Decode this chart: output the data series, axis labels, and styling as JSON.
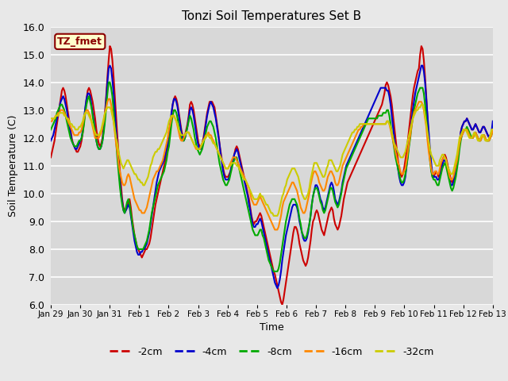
{
  "title": "Tonzi Soil Temperatures Set B",
  "xlabel": "Time",
  "ylabel": "Soil Temperature (C)",
  "ylim": [
    6.0,
    16.0
  ],
  "yticks": [
    6.0,
    7.0,
    8.0,
    9.0,
    10.0,
    11.0,
    12.0,
    13.0,
    14.0,
    15.0,
    16.0
  ],
  "xtick_labels": [
    "Jan 29",
    "Jan 30",
    "Jan 31",
    "Feb 1",
    "Feb 2",
    "Feb 3",
    "Feb 4",
    "Feb 5",
    "Feb 6",
    "Feb 7",
    "Feb 8",
    "Feb 9",
    "Feb 10",
    "Feb 11",
    "Feb 12",
    "Feb 13"
  ],
  "legend_label": "TZ_fmet",
  "series_labels": [
    "-2cm",
    "-4cm",
    "-8cm",
    "-16cm",
    "-32cm"
  ],
  "series_colors": [
    "#cc0000",
    "#0000cc",
    "#00aa00",
    "#ff8800",
    "#cccc00"
  ],
  "line_width": 1.5,
  "background_color": "#e8e8e8",
  "plot_bg_color": "#d8d8d8",
  "grid_color": "#ffffff",
  "figsize": [
    6.4,
    4.8
  ],
  "dpi": 100,
  "cm2_data": [
    11.3,
    11.5,
    11.7,
    11.9,
    12.2,
    12.5,
    12.8,
    13.1,
    13.4,
    13.7,
    13.8,
    13.7,
    13.5,
    13.2,
    12.9,
    12.6,
    12.3,
    12.0,
    11.8,
    11.7,
    11.6,
    11.5,
    11.5,
    11.6,
    11.7,
    11.9,
    12.2,
    12.6,
    13.0,
    13.4,
    13.7,
    13.8,
    13.7,
    13.5,
    13.3,
    13.0,
    12.7,
    12.3,
    12.0,
    11.8,
    11.7,
    11.8,
    12.0,
    12.4,
    12.9,
    13.5,
    14.2,
    14.8,
    15.3,
    15.2,
    14.8,
    14.2,
    13.5,
    12.8,
    12.1,
    11.5,
    10.9,
    10.3,
    9.8,
    9.5,
    9.4,
    9.4,
    9.5,
    9.7,
    9.8,
    9.5,
    9.1,
    8.8,
    8.5,
    8.3,
    8.1,
    8.0,
    7.9,
    7.8,
    7.7,
    7.8,
    7.9,
    8.0,
    8.0,
    8.1,
    8.2,
    8.4,
    8.7,
    9.0,
    9.3,
    9.6,
    9.8,
    10.0,
    10.2,
    10.4,
    10.6,
    10.8,
    11.0,
    11.2,
    11.4,
    11.7,
    12.0,
    12.4,
    12.8,
    13.2,
    13.4,
    13.5,
    13.4,
    13.2,
    12.9,
    12.6,
    12.3,
    12.1,
    12.0,
    12.1,
    12.3,
    12.5,
    12.8,
    13.2,
    13.3,
    13.2,
    13.0,
    12.7,
    12.4,
    12.1,
    11.8,
    11.7,
    11.7,
    11.8,
    12.0,
    12.3,
    12.6,
    12.9,
    13.1,
    13.3,
    13.3,
    13.3,
    13.2,
    13.1,
    12.8,
    12.5,
    12.2,
    11.8,
    11.5,
    11.2,
    10.9,
    10.7,
    10.6,
    10.6,
    10.6,
    10.7,
    10.8,
    11.0,
    11.2,
    11.4,
    11.6,
    11.7,
    11.6,
    11.4,
    11.2,
    11.0,
    10.8,
    10.6,
    10.4,
    10.2,
    10.0,
    9.8,
    9.5,
    9.2,
    9.0,
    8.9,
    9.0,
    9.0,
    9.1,
    9.2,
    9.3,
    9.2,
    9.0,
    8.8,
    8.6,
    8.4,
    8.2,
    8.0,
    7.8,
    7.6,
    7.4,
    7.2,
    7.1,
    6.9,
    6.7,
    6.5,
    6.3,
    6.1,
    6.0,
    6.2,
    6.5,
    6.8,
    7.1,
    7.4,
    7.7,
    8.0,
    8.3,
    8.6,
    8.8,
    8.8,
    8.7,
    8.5,
    8.2,
    8.0,
    7.8,
    7.6,
    7.5,
    7.4,
    7.5,
    7.7,
    8.0,
    8.3,
    8.7,
    9.0,
    9.1,
    9.3,
    9.4,
    9.3,
    9.1,
    8.9,
    8.7,
    8.6,
    8.5,
    8.7,
    8.9,
    9.1,
    9.3,
    9.4,
    9.5,
    9.4,
    9.1,
    8.9,
    8.8,
    8.7,
    8.8,
    9.0,
    9.2,
    9.5,
    9.8,
    10.0,
    10.2,
    10.4,
    10.5,
    10.6,
    10.7,
    10.8,
    10.9,
    11.0,
    11.1,
    11.2,
    11.3,
    11.4,
    11.5,
    11.6,
    11.7,
    11.8,
    11.9,
    12.0,
    12.1,
    12.2,
    12.3,
    12.4,
    12.5,
    12.6,
    12.7,
    12.8,
    12.9,
    13.0,
    13.1,
    13.2,
    13.4,
    13.6,
    13.9,
    14.0,
    13.9,
    13.7,
    13.5,
    13.2,
    12.8,
    12.4,
    12.0,
    11.6,
    11.2,
    10.9,
    10.7,
    10.6,
    10.7,
    10.9,
    11.2,
    11.5,
    11.9,
    12.3,
    12.7,
    13.1,
    13.5,
    13.8,
    14.0,
    14.2,
    14.4,
    14.5,
    15.0,
    15.3,
    15.2,
    14.8,
    14.2,
    13.5,
    12.7,
    12.0,
    11.4,
    10.9,
    10.6,
    10.6,
    10.7,
    10.8,
    10.7,
    10.6,
    10.8,
    11.0,
    11.2,
    11.3,
    11.4,
    11.3,
    11.1,
    10.9,
    10.7,
    10.5,
    10.4,
    10.5,
    10.6,
    10.8,
    11.1,
    11.4,
    11.8,
    12.2,
    12.4,
    12.5,
    12.6,
    12.6,
    12.7,
    12.6,
    12.5,
    12.4,
    12.3,
    12.3,
    12.4,
    12.5,
    12.4,
    12.3,
    12.2,
    12.2,
    12.3,
    12.4,
    12.4,
    12.3,
    12.2,
    12.1,
    12.0,
    12.1,
    12.2,
    12.3
  ],
  "cm4_data": [
    11.9,
    12.0,
    12.1,
    12.3,
    12.5,
    12.7,
    12.9,
    13.1,
    13.3,
    13.4,
    13.5,
    13.4,
    13.2,
    13.0,
    12.7,
    12.4,
    12.2,
    11.9,
    11.8,
    11.7,
    11.6,
    11.6,
    11.7,
    11.8,
    11.9,
    12.0,
    12.3,
    12.7,
    13.1,
    13.4,
    13.6,
    13.6,
    13.5,
    13.2,
    12.9,
    12.6,
    12.2,
    11.9,
    11.7,
    11.6,
    11.6,
    11.7,
    11.9,
    12.3,
    12.8,
    13.4,
    14.0,
    14.5,
    14.6,
    14.5,
    14.1,
    13.6,
    13.0,
    12.3,
    11.7,
    11.1,
    10.5,
    10.0,
    9.7,
    9.4,
    9.3,
    9.4,
    9.5,
    9.6,
    9.5,
    9.2,
    8.9,
    8.6,
    8.3,
    8.1,
    7.9,
    7.8,
    7.8,
    7.9,
    7.9,
    8.0,
    8.0,
    8.1,
    8.2,
    8.4,
    8.6,
    8.9,
    9.2,
    9.5,
    9.8,
    10.1,
    10.4,
    10.6,
    10.8,
    10.9,
    11.0,
    11.1,
    11.2,
    11.4,
    11.6,
    11.8,
    12.2,
    12.5,
    12.9,
    13.2,
    13.4,
    13.4,
    13.3,
    13.1,
    12.8,
    12.5,
    12.2,
    12.0,
    11.9,
    12.0,
    12.2,
    12.4,
    12.7,
    13.0,
    13.1,
    13.0,
    12.8,
    12.5,
    12.2,
    11.9,
    11.7,
    11.6,
    11.6,
    11.7,
    11.9,
    12.2,
    12.5,
    12.8,
    13.0,
    13.2,
    13.3,
    13.2,
    13.1,
    12.9,
    12.7,
    12.4,
    12.1,
    11.8,
    11.4,
    11.1,
    10.8,
    10.6,
    10.5,
    10.5,
    10.5,
    10.6,
    10.8,
    11.0,
    11.2,
    11.4,
    11.5,
    11.6,
    11.5,
    11.3,
    11.1,
    10.9,
    10.7,
    10.5,
    10.3,
    10.1,
    9.9,
    9.6,
    9.4,
    9.1,
    8.9,
    8.8,
    8.8,
    8.9,
    8.9,
    9.0,
    9.1,
    9.0,
    8.8,
    8.6,
    8.4,
    8.2,
    8.0,
    7.8,
    7.6,
    7.4,
    7.2,
    7.0,
    6.8,
    6.7,
    6.6,
    6.7,
    6.9,
    7.2,
    7.6,
    7.9,
    8.2,
    8.5,
    8.7,
    8.9,
    9.1,
    9.3,
    9.5,
    9.6,
    9.6,
    9.6,
    9.5,
    9.3,
    9.0,
    8.8,
    8.6,
    8.4,
    8.3,
    8.3,
    8.4,
    8.6,
    8.9,
    9.2,
    9.6,
    9.9,
    10.1,
    10.3,
    10.3,
    10.2,
    10.0,
    9.8,
    9.7,
    9.5,
    9.4,
    9.5,
    9.7,
    9.9,
    10.1,
    10.3,
    10.4,
    10.3,
    10.1,
    9.8,
    9.7,
    9.6,
    9.7,
    9.9,
    10.1,
    10.4,
    10.6,
    10.8,
    11.0,
    11.1,
    11.2,
    11.3,
    11.4,
    11.5,
    11.6,
    11.7,
    11.8,
    11.9,
    12.0,
    12.1,
    12.2,
    12.3,
    12.4,
    12.5,
    12.6,
    12.7,
    12.8,
    12.9,
    13.0,
    13.1,
    13.2,
    13.3,
    13.4,
    13.5,
    13.6,
    13.7,
    13.8,
    13.8,
    13.8,
    13.8,
    13.8,
    13.7,
    13.7,
    13.5,
    13.2,
    12.8,
    12.4,
    12.0,
    11.6,
    11.2,
    10.9,
    10.6,
    10.4,
    10.3,
    10.3,
    10.4,
    10.6,
    11.0,
    11.4,
    11.8,
    12.2,
    12.6,
    13.0,
    13.3,
    13.6,
    13.8,
    14.0,
    14.2,
    14.4,
    14.6,
    14.6,
    14.4,
    14.0,
    13.4,
    12.8,
    12.2,
    11.6,
    11.1,
    10.7,
    10.6,
    10.6,
    10.6,
    10.5,
    10.5,
    10.6,
    10.8,
    11.0,
    11.2,
    11.2,
    11.1,
    10.9,
    10.7,
    10.5,
    10.3,
    10.3,
    10.4,
    10.6,
    10.8,
    11.1,
    11.4,
    11.8,
    12.2,
    12.4,
    12.5,
    12.6,
    12.6,
    12.7,
    12.6,
    12.5,
    12.4,
    12.3,
    12.3,
    12.4,
    12.5,
    12.4,
    12.3,
    12.2,
    12.2,
    12.3,
    12.4,
    12.4,
    12.3,
    12.2,
    12.1,
    12.0,
    12.1,
    12.2,
    12.6
  ],
  "cm8_data": [
    12.3,
    12.4,
    12.5,
    12.6,
    12.7,
    12.9,
    13.0,
    13.1,
    13.2,
    13.2,
    13.1,
    13.0,
    12.8,
    12.6,
    12.4,
    12.2,
    12.0,
    11.9,
    11.8,
    11.7,
    11.7,
    11.7,
    11.8,
    11.9,
    11.9,
    12.0,
    12.2,
    12.5,
    12.9,
    13.2,
    13.4,
    13.5,
    13.3,
    13.1,
    12.8,
    12.5,
    12.2,
    11.9,
    11.7,
    11.6,
    11.6,
    11.7,
    11.9,
    12.2,
    12.6,
    13.1,
    13.6,
    14.0,
    14.0,
    13.8,
    13.5,
    13.0,
    12.4,
    11.9,
    11.3,
    10.8,
    10.3,
    9.9,
    9.6,
    9.4,
    9.3,
    9.5,
    9.7,
    9.8,
    9.6,
    9.3,
    9.0,
    8.7,
    8.5,
    8.3,
    8.1,
    8.0,
    8.0,
    8.0,
    8.0,
    8.0,
    8.1,
    8.2,
    8.3,
    8.5,
    8.7,
    9.0,
    9.3,
    9.5,
    9.7,
    9.9,
    10.1,
    10.3,
    10.4,
    10.5,
    10.6,
    10.7,
    10.8,
    11.0,
    11.2,
    11.5,
    11.7,
    12.1,
    12.5,
    12.8,
    13.0,
    13.0,
    12.9,
    12.7,
    12.4,
    12.2,
    12.0,
    11.9,
    11.9,
    12.0,
    12.2,
    12.4,
    12.6,
    12.8,
    12.7,
    12.5,
    12.3,
    12.0,
    11.8,
    11.6,
    11.5,
    11.4,
    11.5,
    11.6,
    11.8,
    12.0,
    12.2,
    12.4,
    12.5,
    12.6,
    12.6,
    12.5,
    12.4,
    12.2,
    12.0,
    11.7,
    11.4,
    11.1,
    10.9,
    10.7,
    10.5,
    10.4,
    10.3,
    10.3,
    10.4,
    10.5,
    10.7,
    10.9,
    11.1,
    11.2,
    11.3,
    11.3,
    11.1,
    10.9,
    10.7,
    10.5,
    10.3,
    10.1,
    9.9,
    9.7,
    9.5,
    9.3,
    9.1,
    8.9,
    8.7,
    8.6,
    8.5,
    8.5,
    8.5,
    8.6,
    8.7,
    8.7,
    8.5,
    8.4,
    8.2,
    8.0,
    7.8,
    7.6,
    7.5,
    7.4,
    7.3,
    7.2,
    7.2,
    7.2,
    7.2,
    7.3,
    7.5,
    7.8,
    8.1,
    8.4,
    8.7,
    9.0,
    9.2,
    9.4,
    9.6,
    9.7,
    9.8,
    9.8,
    9.8,
    9.7,
    9.6,
    9.4,
    9.1,
    8.9,
    8.6,
    8.5,
    8.4,
    8.4,
    8.5,
    8.7,
    8.9,
    9.2,
    9.6,
    9.9,
    10.1,
    10.2,
    10.2,
    10.1,
    9.9,
    9.7,
    9.6,
    9.4,
    9.3,
    9.4,
    9.6,
    9.8,
    10.0,
    10.2,
    10.2,
    10.1,
    9.9,
    9.7,
    9.6,
    9.5,
    9.6,
    9.8,
    10.0,
    10.3,
    10.5,
    10.7,
    10.9,
    11.0,
    11.1,
    11.2,
    11.3,
    11.4,
    11.5,
    11.6,
    11.7,
    11.8,
    11.9,
    12.0,
    12.1,
    12.2,
    12.3,
    12.4,
    12.5,
    12.6,
    12.7,
    12.7,
    12.7,
    12.7,
    12.7,
    12.7,
    12.7,
    12.7,
    12.8,
    12.8,
    12.8,
    12.8,
    12.9,
    12.9,
    12.9,
    13.0,
    13.0,
    12.8,
    12.5,
    12.2,
    11.9,
    11.6,
    11.3,
    11.1,
    10.9,
    10.7,
    10.5,
    10.4,
    10.4,
    10.5,
    10.7,
    11.0,
    11.3,
    11.7,
    12.0,
    12.4,
    12.7,
    13.0,
    13.2,
    13.4,
    13.6,
    13.7,
    13.8,
    13.8,
    13.8,
    13.6,
    13.2,
    12.7,
    12.2,
    11.7,
    11.2,
    10.8,
    10.6,
    10.5,
    10.5,
    10.4,
    10.3,
    10.3,
    10.5,
    10.7,
    10.9,
    11.0,
    11.1,
    11.0,
    10.8,
    10.6,
    10.4,
    10.2,
    10.1,
    10.2,
    10.4,
    10.6,
    10.9,
    11.2,
    11.6,
    11.9,
    12.1,
    12.2,
    12.3,
    12.3,
    12.4,
    12.3,
    12.2,
    12.1,
    12.0,
    12.0,
    12.1,
    12.2,
    12.1,
    12.0,
    11.9,
    11.9,
    12.0,
    12.1,
    12.1,
    12.0,
    11.9,
    11.9,
    11.9,
    12.0,
    12.1,
    12.3
  ],
  "cm16_data": [
    12.6,
    12.6,
    12.7,
    12.7,
    12.8,
    12.8,
    12.9,
    12.9,
    13.0,
    13.0,
    13.0,
    12.9,
    12.8,
    12.7,
    12.6,
    12.5,
    12.4,
    12.3,
    12.2,
    12.1,
    12.1,
    12.1,
    12.1,
    12.2,
    12.2,
    12.3,
    12.5,
    12.7,
    12.9,
    13.0,
    13.0,
    12.9,
    12.8,
    12.6,
    12.4,
    12.2,
    12.0,
    12.0,
    12.0,
    12.0,
    12.1,
    12.2,
    12.4,
    12.6,
    12.9,
    13.1,
    13.3,
    13.4,
    13.4,
    13.2,
    12.9,
    12.6,
    12.2,
    11.8,
    11.5,
    11.1,
    10.8,
    10.6,
    10.4,
    10.3,
    10.3,
    10.4,
    10.6,
    10.7,
    10.6,
    10.4,
    10.2,
    10.0,
    9.8,
    9.7,
    9.6,
    9.5,
    9.4,
    9.4,
    9.3,
    9.3,
    9.3,
    9.4,
    9.5,
    9.7,
    9.9,
    10.1,
    10.3,
    10.5,
    10.6,
    10.7,
    10.8,
    10.8,
    10.9,
    11.0,
    11.1,
    11.2,
    11.4,
    11.6,
    11.8,
    12.0,
    12.3,
    12.5,
    12.7,
    12.8,
    12.8,
    12.7,
    12.6,
    12.4,
    12.2,
    12.0,
    11.9,
    11.9,
    12.0,
    12.1,
    12.2,
    12.2,
    12.2,
    12.1,
    12.0,
    11.9,
    11.8,
    11.7,
    11.6,
    11.6,
    11.6,
    11.6,
    11.7,
    11.8,
    11.9,
    12.0,
    12.1,
    12.1,
    12.2,
    12.1,
    12.1,
    12.0,
    11.9,
    11.8,
    11.7,
    11.6,
    11.5,
    11.4,
    11.3,
    11.2,
    11.1,
    11.0,
    10.9,
    10.9,
    10.9,
    11.0,
    11.1,
    11.2,
    11.3,
    11.3,
    11.3,
    11.2,
    11.1,
    11.0,
    10.9,
    10.8,
    10.7,
    10.6,
    10.5,
    10.4,
    10.3,
    10.2,
    10.0,
    9.8,
    9.7,
    9.6,
    9.6,
    9.6,
    9.7,
    9.8,
    9.9,
    9.8,
    9.7,
    9.6,
    9.5,
    9.4,
    9.3,
    9.2,
    9.1,
    9.0,
    8.9,
    8.8,
    8.7,
    8.7,
    8.7,
    8.8,
    9.0,
    9.2,
    9.5,
    9.7,
    9.8,
    9.9,
    10.0,
    10.1,
    10.2,
    10.3,
    10.4,
    10.4,
    10.3,
    10.2,
    10.1,
    9.9,
    9.7,
    9.5,
    9.4,
    9.3,
    9.3,
    9.4,
    9.6,
    9.8,
    10.0,
    10.3,
    10.5,
    10.7,
    10.8,
    10.8,
    10.7,
    10.6,
    10.4,
    10.3,
    10.2,
    10.1,
    10.1,
    10.2,
    10.4,
    10.6,
    10.7,
    10.8,
    10.8,
    10.7,
    10.6,
    10.4,
    10.3,
    10.3,
    10.4,
    10.6,
    10.8,
    11.0,
    11.1,
    11.2,
    11.3,
    11.4,
    11.5,
    11.6,
    11.7,
    11.8,
    11.9,
    12.0,
    12.1,
    12.2,
    12.3,
    12.3,
    12.4,
    12.4,
    12.5,
    12.5,
    12.5,
    12.5,
    12.5,
    12.5,
    12.5,
    12.5,
    12.5,
    12.5,
    12.5,
    12.5,
    12.5,
    12.5,
    12.5,
    12.5,
    12.5,
    12.5,
    12.5,
    12.6,
    12.6,
    12.5,
    12.3,
    12.1,
    11.9,
    11.7,
    11.5,
    11.3,
    11.1,
    11.0,
    10.8,
    10.7,
    10.7,
    10.8,
    10.9,
    11.2,
    11.5,
    11.8,
    12.1,
    12.4,
    12.7,
    12.9,
    13.0,
    13.1,
    13.2,
    13.3,
    13.3,
    13.3,
    13.2,
    13.0,
    12.7,
    12.4,
    11.9,
    11.5,
    11.2,
    10.9,
    10.7,
    10.7,
    10.8,
    10.8,
    10.7,
    10.7,
    10.9,
    11.1,
    11.2,
    11.3,
    11.3,
    11.2,
    11.0,
    10.8,
    10.6,
    10.5,
    10.5,
    10.6,
    10.8,
    11.0,
    11.2,
    11.5,
    11.8,
    12.0,
    12.1,
    12.2,
    12.3,
    12.3,
    12.3,
    12.2,
    12.1,
    12.0,
    12.0,
    12.0,
    12.1,
    12.2,
    12.1,
    12.0,
    11.9,
    11.9,
    12.0,
    12.1,
    12.1,
    12.0,
    11.9,
    11.9,
    11.9,
    12.0,
    12.1,
    12.3
  ],
  "cm32_data": [
    12.7,
    12.7,
    12.7,
    12.7,
    12.8,
    12.8,
    12.8,
    12.9,
    12.9,
    12.9,
    12.9,
    12.8,
    12.8,
    12.7,
    12.7,
    12.6,
    12.5,
    12.5,
    12.4,
    12.4,
    12.3,
    12.3,
    12.3,
    12.4,
    12.4,
    12.5,
    12.6,
    12.8,
    12.9,
    12.9,
    12.9,
    12.8,
    12.7,
    12.6,
    12.5,
    12.3,
    12.2,
    12.1,
    12.1,
    12.1,
    12.2,
    12.3,
    12.5,
    12.7,
    12.9,
    13.0,
    13.1,
    13.1,
    13.1,
    13.0,
    12.8,
    12.6,
    12.3,
    12.0,
    11.8,
    11.5,
    11.3,
    11.1,
    11.0,
    10.9,
    11.0,
    11.1,
    11.2,
    11.2,
    11.1,
    11.0,
    10.9,
    10.8,
    10.7,
    10.7,
    10.6,
    10.5,
    10.5,
    10.4,
    10.4,
    10.3,
    10.3,
    10.4,
    10.5,
    10.6,
    10.8,
    11.0,
    11.1,
    11.3,
    11.4,
    11.5,
    11.5,
    11.6,
    11.6,
    11.7,
    11.8,
    11.9,
    12.0,
    12.1,
    12.2,
    12.4,
    12.6,
    12.7,
    12.8,
    12.8,
    12.8,
    12.7,
    12.6,
    12.5,
    12.3,
    12.2,
    12.1,
    12.1,
    12.1,
    12.1,
    12.2,
    12.2,
    12.2,
    12.1,
    12.0,
    11.9,
    11.8,
    11.7,
    11.7,
    11.6,
    11.6,
    11.6,
    11.7,
    11.8,
    11.9,
    12.0,
    12.0,
    12.1,
    12.1,
    12.0,
    12.0,
    11.9,
    11.8,
    11.8,
    11.7,
    11.6,
    11.5,
    11.4,
    11.3,
    11.2,
    11.1,
    11.0,
    10.9,
    10.9,
    10.9,
    11.0,
    11.0,
    11.1,
    11.1,
    11.1,
    11.1,
    11.0,
    11.0,
    10.9,
    10.8,
    10.7,
    10.6,
    10.5,
    10.5,
    10.4,
    10.3,
    10.2,
    10.1,
    10.0,
    9.9,
    9.8,
    9.8,
    9.8,
    9.8,
    9.9,
    10.0,
    9.9,
    9.9,
    9.8,
    9.7,
    9.6,
    9.6,
    9.5,
    9.4,
    9.3,
    9.3,
    9.2,
    9.2,
    9.2,
    9.2,
    9.3,
    9.5,
    9.7,
    9.9,
    10.0,
    10.2,
    10.3,
    10.5,
    10.6,
    10.7,
    10.8,
    10.9,
    10.9,
    10.9,
    10.8,
    10.7,
    10.6,
    10.4,
    10.2,
    10.0,
    9.9,
    9.8,
    9.8,
    9.9,
    10.0,
    10.2,
    10.5,
    10.7,
    10.9,
    11.1,
    11.1,
    11.1,
    11.0,
    10.9,
    10.8,
    10.7,
    10.6,
    10.6,
    10.7,
    10.9,
    11.0,
    11.2,
    11.2,
    11.2,
    11.1,
    11.0,
    10.9,
    10.8,
    10.8,
    10.9,
    11.0,
    11.2,
    11.4,
    11.5,
    11.6,
    11.7,
    11.8,
    11.9,
    12.0,
    12.1,
    12.2,
    12.2,
    12.3,
    12.3,
    12.4,
    12.4,
    12.5,
    12.5,
    12.5,
    12.5,
    12.5,
    12.5,
    12.5,
    12.5,
    12.5,
    12.5,
    12.5,
    12.5,
    12.5,
    12.5,
    12.5,
    12.5,
    12.5,
    12.5,
    12.5,
    12.5,
    12.5,
    12.5,
    12.6,
    12.6,
    12.5,
    12.4,
    12.2,
    12.0,
    11.8,
    11.7,
    11.6,
    11.5,
    11.4,
    11.3,
    11.3,
    11.3,
    11.4,
    11.5,
    11.7,
    11.9,
    12.1,
    12.3,
    12.5,
    12.7,
    12.8,
    12.9,
    13.0,
    13.0,
    13.1,
    13.1,
    13.2,
    13.2,
    13.1,
    12.8,
    12.5,
    12.2,
    11.9,
    11.6,
    11.4,
    11.3,
    11.2,
    11.1,
    11.0,
    11.0,
    11.0,
    11.2,
    11.3,
    11.4,
    11.4,
    11.3,
    11.2,
    11.0,
    10.9,
    10.8,
    10.7,
    10.7,
    10.8,
    11.0,
    11.2,
    11.4,
    11.7,
    12.0,
    12.1,
    12.2,
    12.3,
    12.3,
    12.3,
    12.2,
    12.1,
    12.0,
    12.0,
    12.0,
    12.1,
    12.2,
    12.1,
    12.0,
    11.9,
    11.9,
    12.0,
    12.1,
    12.1,
    12.0,
    11.9,
    11.9,
    11.9,
    12.0,
    12.1,
    12.3,
    12.3
  ]
}
